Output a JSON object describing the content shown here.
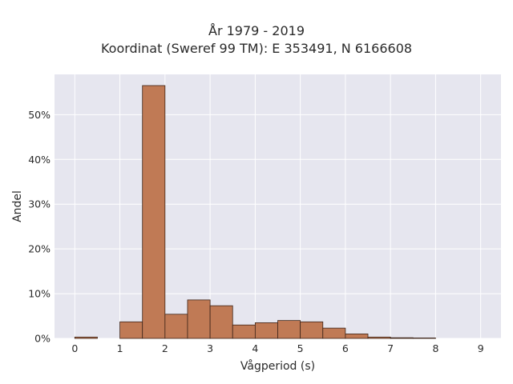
{
  "chart_data": {
    "type": "bar",
    "title_lines": [
      "År 1979 - 2019",
      "Koordinat (Sweref 99 TM): E 353491, N 6166608"
    ],
    "xlabel": "Vågperiod (s)",
    "ylabel": "Andel",
    "xlim": [
      -0.45,
      9.45
    ],
    "ylim": [
      0,
      59
    ],
    "grid": true,
    "x_ticks": [
      {
        "value": 0,
        "label": "0"
      },
      {
        "value": 1,
        "label": "1"
      },
      {
        "value": 2,
        "label": "2"
      },
      {
        "value": 3,
        "label": "3"
      },
      {
        "value": 4,
        "label": "4"
      },
      {
        "value": 5,
        "label": "5"
      },
      {
        "value": 6,
        "label": "6"
      },
      {
        "value": 7,
        "label": "7"
      },
      {
        "value": 8,
        "label": "8"
      },
      {
        "value": 9,
        "label": "9"
      }
    ],
    "y_ticks": [
      {
        "value": 0,
        "label": "0%"
      },
      {
        "value": 10,
        "label": "10%"
      },
      {
        "value": 20,
        "label": "20%"
      },
      {
        "value": 30,
        "label": "30%"
      },
      {
        "value": 40,
        "label": "40%"
      },
      {
        "value": 50,
        "label": "50%"
      }
    ],
    "bins": [
      {
        "x0": 0.0,
        "x1": 0.5,
        "value": 0.3
      },
      {
        "x0": 1.0,
        "x1": 1.5,
        "value": 3.7
      },
      {
        "x0": 1.5,
        "x1": 2.0,
        "value": 56.5
      },
      {
        "x0": 2.0,
        "x1": 2.5,
        "value": 5.4
      },
      {
        "x0": 2.5,
        "x1": 3.0,
        "value": 8.6
      },
      {
        "x0": 3.0,
        "x1": 3.5,
        "value": 7.3
      },
      {
        "x0": 3.5,
        "x1": 4.0,
        "value": 3.0
      },
      {
        "x0": 4.0,
        "x1": 4.5,
        "value": 3.5
      },
      {
        "x0": 4.5,
        "x1": 5.0,
        "value": 4.0
      },
      {
        "x0": 5.0,
        "x1": 5.5,
        "value": 3.7
      },
      {
        "x0": 5.5,
        "x1": 6.0,
        "value": 2.3
      },
      {
        "x0": 6.0,
        "x1": 6.5,
        "value": 1.0
      },
      {
        "x0": 6.5,
        "x1": 7.0,
        "value": 0.3
      },
      {
        "x0": 7.0,
        "x1": 7.5,
        "value": 0.15
      },
      {
        "x0": 7.5,
        "x1": 8.0,
        "value": 0.1
      }
    ],
    "colors": {
      "bar_fill": "#c07a55",
      "bar_stroke": "#3d2418",
      "plot_bg": "#e6e6ef",
      "grid": "#ffffff"
    }
  }
}
